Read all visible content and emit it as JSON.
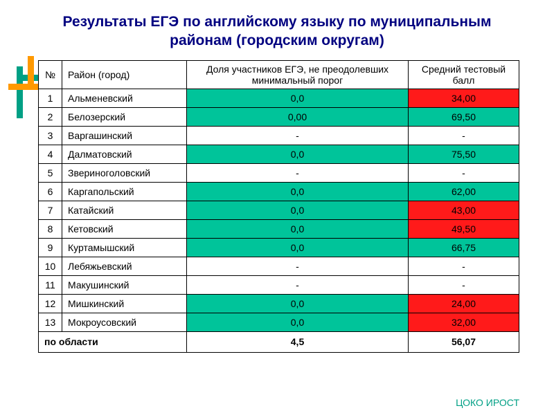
{
  "title": "Результаты ЕГЭ по английскому языку по муниципальным районам (городским округам)",
  "columns": {
    "num": "№",
    "name": "Район (город)",
    "share": "Доля участников ЕГЭ, не преодолевших минимальный порог",
    "score": "Средний тестовый балл"
  },
  "colors": {
    "teal": "#00c49a",
    "red": "#ff1a1a",
    "white": "#ffffff"
  },
  "rows": [
    {
      "num": "1",
      "name": "Альменевский",
      "share": "0,0",
      "score": "34,00",
      "name_bg": "teal",
      "share_bg": "teal",
      "score_bg": "red"
    },
    {
      "num": "2",
      "name": "Белозерский",
      "share": "0,00",
      "score": "69,50",
      "name_bg": "white",
      "share_bg": "teal",
      "score_bg": "teal"
    },
    {
      "num": "3",
      "name": "Варгашинский",
      "share": "-",
      "score": "-",
      "name_bg": "teal",
      "share_bg": "white",
      "score_bg": "white"
    },
    {
      "num": "4",
      "name": "Далматовский",
      "share": "0,0",
      "score": "75,50",
      "name_bg": "white",
      "share_bg": "teal",
      "score_bg": "teal"
    },
    {
      "num": "5",
      "name": "Звериноголовский",
      "share": "-",
      "score": "-",
      "name_bg": "teal",
      "share_bg": "white",
      "score_bg": "white"
    },
    {
      "num": "6",
      "name": "Каргапольский",
      "share": "0,0",
      "score": "62,00",
      "name_bg": "white",
      "share_bg": "teal",
      "score_bg": "teal"
    },
    {
      "num": "7",
      "name": "Катайский",
      "share": "0,0",
      "score": "43,00",
      "name_bg": "teal",
      "share_bg": "teal",
      "score_bg": "red"
    },
    {
      "num": "8",
      "name": "Кетовский",
      "share": "0,0",
      "score": "49,50",
      "name_bg": "white",
      "share_bg": "teal",
      "score_bg": "red"
    },
    {
      "num": "9",
      "name": "Куртамышский",
      "share": "0,0",
      "score": "66,75",
      "name_bg": "teal",
      "share_bg": "teal",
      "score_bg": "teal"
    },
    {
      "num": "10",
      "name": "Лебяжьевский",
      "share": "-",
      "score": "-",
      "name_bg": "white",
      "share_bg": "white",
      "score_bg": "white"
    },
    {
      "num": "11",
      "name": "Макушинский",
      "share": "-",
      "score": "-",
      "name_bg": "teal",
      "share_bg": "white",
      "score_bg": "white"
    },
    {
      "num": "12",
      "name": "Мишкинский",
      "share": "0,0",
      "score": "24,00",
      "name_bg": "white",
      "share_bg": "teal",
      "score_bg": "red"
    },
    {
      "num": "13",
      "name": "Мокроусовский",
      "share": "0,0",
      "score": "32,00",
      "name_bg": "teal",
      "share_bg": "teal",
      "score_bg": "red"
    }
  ],
  "summary": {
    "name": "по области",
    "share": "4,5",
    "score": "56,07"
  },
  "footer": "ЦОКО ИРОСТ"
}
